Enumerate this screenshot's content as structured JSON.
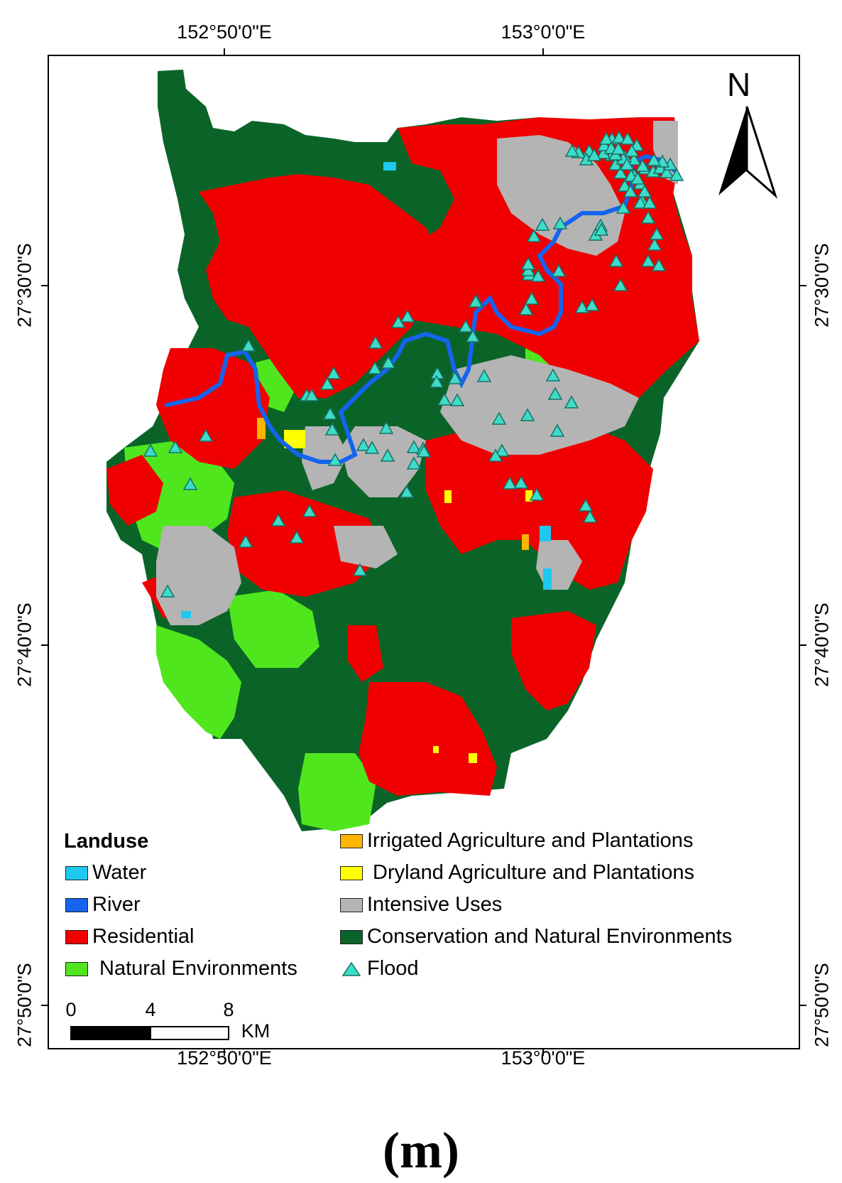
{
  "map": {
    "top_ticks": [
      "152°50'0\"E",
      "153°0'0\"E"
    ],
    "bottom_ticks": [
      "152°50'0\"E",
      "153°0'0\"E"
    ],
    "left_ticks": [
      "27°30'0\"S",
      "27°40'0\"S",
      "27°50'0\"S"
    ],
    "right_ticks": [
      "27°30'0\"S",
      "27°40'0\"S",
      "27°50'0\"S"
    ],
    "north_label": "N"
  },
  "legend": {
    "title": "Landuse",
    "items": [
      {
        "label": "Water",
        "color": "#1ec8f0"
      },
      {
        "label": "River",
        "color": "#1464f0"
      },
      {
        "label": "Residential",
        "color": "#f00000"
      },
      {
        "label": "Natural Environments",
        "color": "#50e61e"
      },
      {
        "label": "Irrigated Agriculture and Plantations",
        "color": "#ffb400"
      },
      {
        "label": "Dryland Agriculture and Plantations",
        "color": "#ffff00"
      },
      {
        "label": "Intensive Uses",
        "color": "#b4b4b4"
      },
      {
        "label": "Conservation and Natural Environments",
        "color": "#0a6428"
      },
      {
        "label": "Flood",
        "color": "#3cdcc8",
        "icon": "triangle-icon"
      }
    ]
  },
  "scale_bar": {
    "labels": [
      "0",
      "4",
      "8"
    ],
    "unit": "KM"
  },
  "caption": "(m)"
}
